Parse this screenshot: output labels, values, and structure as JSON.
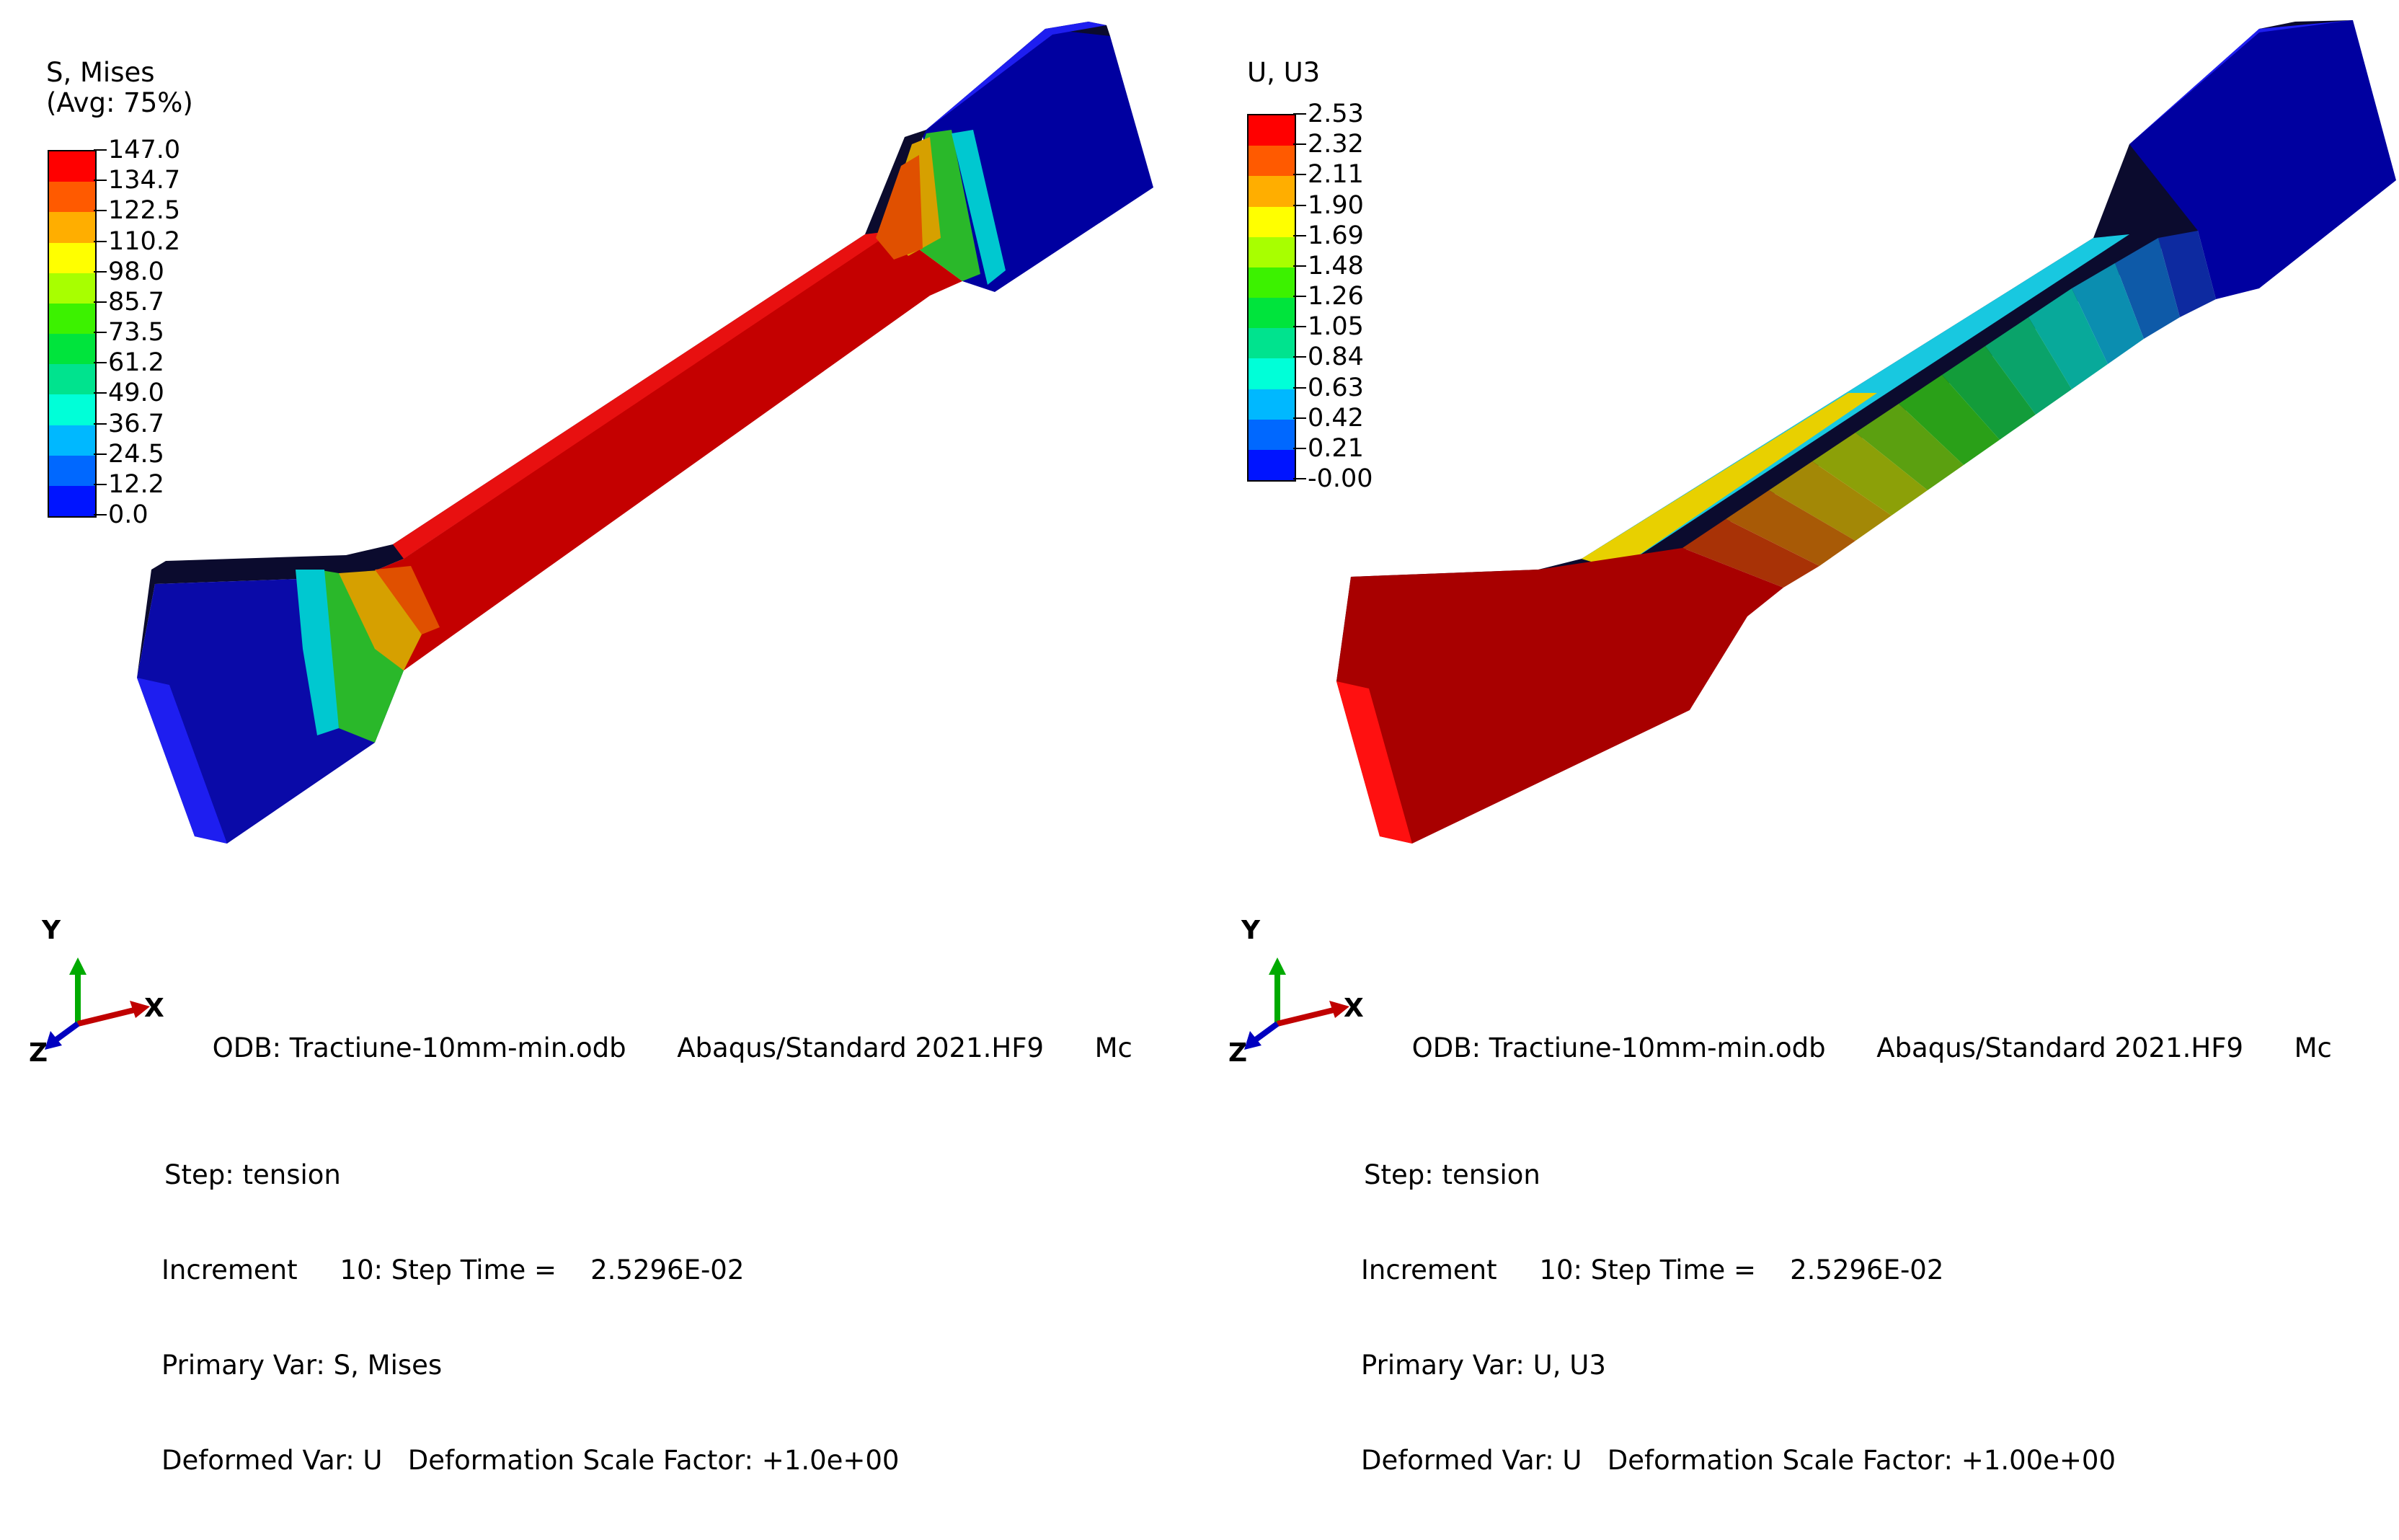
{
  "left": {
    "legend": {
      "title_line1": "S, Mises",
      "title_line2": "(Avg: 75%)",
      "labels": [
        "147.0",
        "134.7",
        "122.5",
        "110.2",
        "98.0",
        "85.7",
        "73.5",
        "61.2",
        "49.0",
        "36.7",
        "24.5",
        "12.2",
        "0.0"
      ]
    },
    "triad": {
      "y": "Y",
      "x": "X",
      "z": "Z"
    },
    "info": {
      "odb": "ODB: Tractiune-10mm-min.odb",
      "solver": "Abaqus/Standard 2021.HF9",
      "cut": "Mc",
      "step": "Step: tension",
      "increment": "Increment     10: Step Time =    2.5296E-02",
      "primary": "Primary Var: S, Mises",
      "deformed": "Deformed Var: U   Deformation Scale Factor: +1.0e+00"
    }
  },
  "right": {
    "legend": {
      "title_line1": "U, U3",
      "labels": [
        "2.53",
        "2.32",
        "2.11",
        "1.90",
        "1.69",
        "1.48",
        "1.26",
        "1.05",
        "0.84",
        "0.63",
        "0.42",
        "0.21",
        "-0.00"
      ]
    },
    "triad": {
      "y": "Y",
      "x": "X",
      "z": "Z"
    },
    "info": {
      "odb": "ODB: Tractiune-10mm-min.odb",
      "solver": "Abaqus/Standard 2021.HF9",
      "cut": "Mc",
      "step": "Step: tension",
      "increment": "Increment     10: Step Time =    2.5296E-02",
      "primary": "Primary Var: U, U3",
      "deformed": "Deformed Var: U   Deformation Scale Factor: +1.00e+00"
    }
  },
  "colors": {
    "contour_scale": [
      "#ff0000",
      "#ff5a00",
      "#ffae00",
      "#ffff00",
      "#a8ff00",
      "#3cf200",
      "#00e43c",
      "#00e38e",
      "#00ffd8",
      "#00b8ff",
      "#0068ff",
      "#0014ff"
    ],
    "triad_x": "#c00000",
    "triad_y": "#00aa00",
    "triad_z": "#0000c0"
  }
}
